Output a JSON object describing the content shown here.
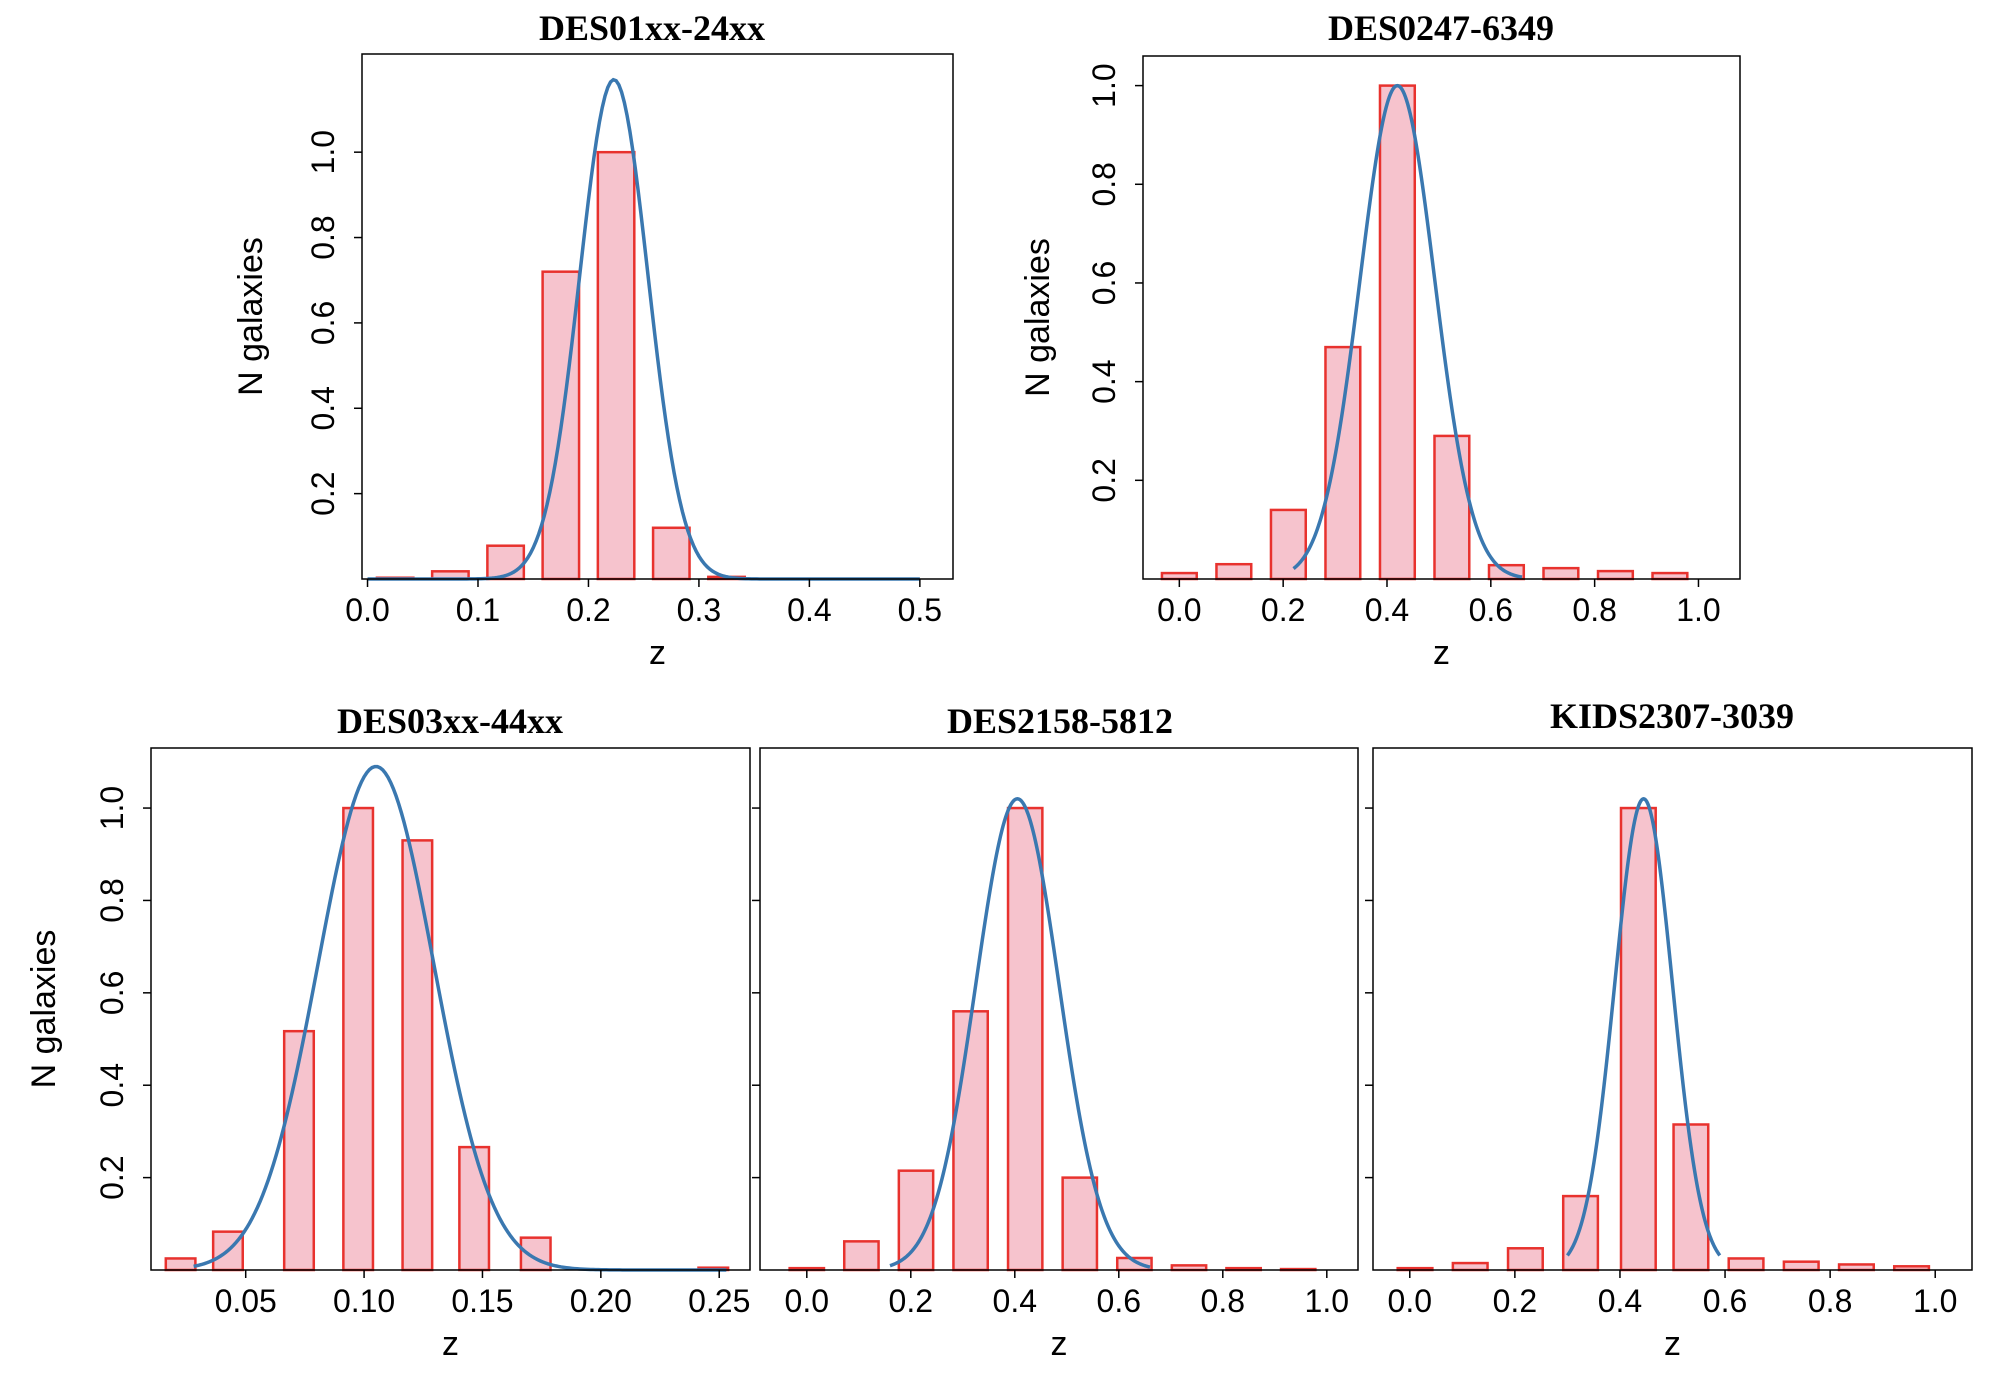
{
  "chart_data": [
    {
      "type": "bar",
      "title": "DES01xx-24xx",
      "xlabel": "z",
      "ylabel": "N galaxies",
      "xlim": [
        -0.005,
        0.53
      ],
      "ylim": [
        0,
        1.23
      ],
      "xticks": [
        0.0,
        0.1,
        0.2,
        0.3,
        0.4,
        0.5
      ],
      "xtick_labels": [
        "0.0",
        "0.1",
        "0.2",
        "0.3",
        "0.4",
        "0.5"
      ],
      "yticks": [
        0.2,
        0.4,
        0.6,
        0.8,
        1.0
      ],
      "ytick_labels": [
        "0.2",
        "0.4",
        "0.6",
        "0.8",
        "1.0"
      ],
      "bar_width": 0.033,
      "bars": {
        "x": [
          0.025,
          0.075,
          0.125,
          0.175,
          0.225,
          0.275,
          0.325,
          0.375,
          0.425,
          0.475
        ],
        "values": [
          0.003,
          0.018,
          0.078,
          0.72,
          1.0,
          0.12,
          0.005,
          0.0,
          0.0,
          0.0
        ]
      },
      "fit": {
        "mu": 0.223,
        "sigma": 0.031,
        "amplitude": 1.17,
        "x_range": [
          0.0,
          0.5
        ]
      }
    },
    {
      "type": "bar",
      "title": "DES0247-6349",
      "xlabel": "z",
      "ylabel": "N galaxies",
      "xlim": [
        -0.07,
        1.08
      ],
      "ylim": [
        0,
        1.06
      ],
      "xticks": [
        0.0,
        0.2,
        0.4,
        0.6,
        0.8,
        1.0
      ],
      "xtick_labels": [
        "0.0",
        "0.2",
        "0.4",
        "0.6",
        "0.8",
        "1.0"
      ],
      "yticks": [
        0.2,
        0.4,
        0.6,
        0.8,
        1.0
      ],
      "ytick_labels": [
        "0.2",
        "0.4",
        "0.6",
        "0.8",
        "1.0"
      ],
      "bar_width": 0.067,
      "bars": {
        "x": [
          0.0,
          0.105,
          0.21,
          0.315,
          0.42,
          0.525,
          0.63,
          0.735,
          0.84,
          0.945
        ],
        "values": [
          0.012,
          0.03,
          0.14,
          0.47,
          1.0,
          0.29,
          0.028,
          0.022,
          0.016,
          0.012
        ]
      },
      "fit": {
        "mu": 0.42,
        "sigma": 0.072,
        "amplitude": 1.0,
        "x_range": [
          0.22,
          0.66
        ]
      }
    },
    {
      "type": "bar",
      "title": "DES03xx-44xx",
      "xlabel": "z",
      "ylabel": "N galaxies",
      "xlim": [
        0.01,
        0.263
      ],
      "ylim": [
        0,
        1.13
      ],
      "xticks": [
        0.05,
        0.1,
        0.15,
        0.2,
        0.25
      ],
      "xtick_labels": [
        "0.05",
        "0.10",
        "0.15",
        "0.20",
        "0.25"
      ],
      "yticks": [
        0.2,
        0.4,
        0.6,
        0.8,
        1.0
      ],
      "ytick_labels": [
        "0.2",
        "0.4",
        "0.6",
        "0.8",
        "1.0"
      ],
      "bar_width": 0.0125,
      "bars": {
        "x": [
          0.0225,
          0.0425,
          0.0725,
          0.0975,
          0.1225,
          0.1465,
          0.1725,
          0.1975,
          0.2225,
          0.2475
        ],
        "values": [
          0.025,
          0.083,
          0.517,
          1.0,
          0.93,
          0.266,
          0.07,
          0.0,
          0.0,
          0.005
        ]
      },
      "fit": {
        "mu": 0.105,
        "sigma": 0.0245,
        "amplitude": 1.09,
        "x_range": [
          0.028,
          0.253
        ]
      }
    },
    {
      "type": "bar",
      "title": "DES2158-5812",
      "xlabel": "z",
      "ylabel": "N galaxies",
      "xlim": [
        -0.09,
        1.06
      ],
      "ylim": [
        0,
        1.13
      ],
      "xticks": [
        0.0,
        0.2,
        0.4,
        0.6,
        0.8,
        1.0
      ],
      "xtick_labels": [
        "0.0",
        "0.2",
        "0.4",
        "0.6",
        "0.8",
        "1.0"
      ],
      "yticks": [
        0.2,
        0.4,
        0.6,
        0.8,
        1.0
      ],
      "ytick_labels": [],
      "bar_width": 0.066,
      "bars": {
        "x": [
          0.0,
          0.105,
          0.21,
          0.315,
          0.42,
          0.525,
          0.63,
          0.735,
          0.84,
          0.945
        ],
        "values": [
          0.004,
          0.062,
          0.215,
          0.56,
          1.0,
          0.2,
          0.026,
          0.01,
          0.004,
          0.002
        ]
      },
      "fit": {
        "mu": 0.405,
        "sigma": 0.08,
        "amplitude": 1.02,
        "x_range": [
          0.16,
          0.66
        ]
      }
    },
    {
      "type": "bar",
      "title": "KIDS2307-3039",
      "xlabel": "z",
      "ylabel": "N galaxies",
      "xlim": [
        -0.07,
        1.07
      ],
      "ylim": [
        0,
        1.13
      ],
      "xticks": [
        0.0,
        0.2,
        0.4,
        0.6,
        0.8,
        1.0
      ],
      "xtick_labels": [
        "0.0",
        "0.2",
        "0.4",
        "0.6",
        "0.8",
        "1.0"
      ],
      "yticks": [
        0.2,
        0.4,
        0.6,
        0.8,
        1.0
      ],
      "ytick_labels": [],
      "bar_width": 0.066,
      "bars": {
        "x": [
          0.01,
          0.115,
          0.22,
          0.325,
          0.435,
          0.535,
          0.64,
          0.745,
          0.85,
          0.955
        ],
        "values": [
          0.004,
          0.015,
          0.047,
          0.16,
          1.0,
          0.315,
          0.025,
          0.018,
          0.012,
          0.008
        ]
      },
      "fit": {
        "mu": 0.445,
        "sigma": 0.055,
        "amplitude": 1.02,
        "x_range": [
          0.3,
          0.59
        ]
      }
    }
  ]
}
